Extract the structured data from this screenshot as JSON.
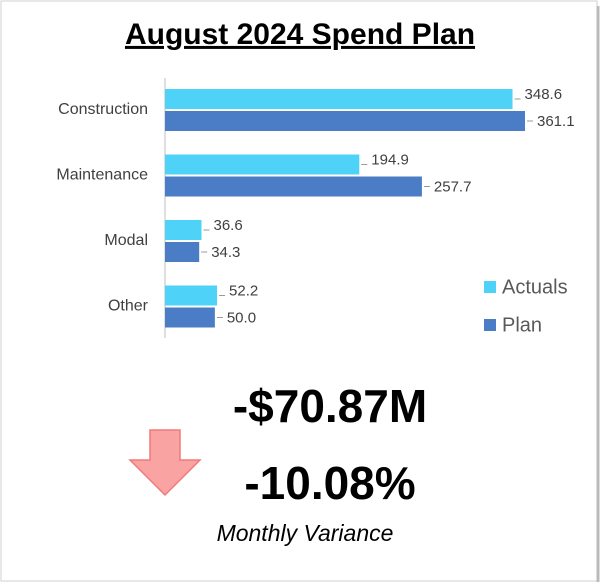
{
  "chart_data": {
    "type": "hbar",
    "title": "August 2024 Spend Plan",
    "categories": [
      "Construction",
      "Maintenance",
      "Modal",
      "Other"
    ],
    "series": [
      {
        "name": "Actuals",
        "color": "#4fd2f7",
        "values": [
          348.6,
          194.9,
          36.6,
          52.2
        ],
        "value_labels": [
          "348.6",
          "194.9",
          "36.6",
          "52.2"
        ]
      },
      {
        "name": "Plan",
        "color": "#4a7dc6",
        "values": [
          361.1,
          257.7,
          34.3,
          50.0
        ],
        "value_labels": [
          "361.1",
          "257.7",
          "34.3",
          "50.0"
        ]
      }
    ],
    "legend": "right"
  },
  "variance": {
    "amount": "-$70.87M",
    "percent": "-10.08%",
    "label": "Monthly Variance"
  }
}
